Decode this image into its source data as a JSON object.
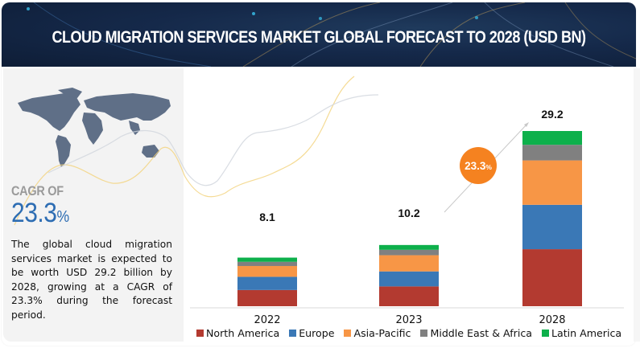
{
  "header": {
    "title": "CLOUD MIGRATION SERVICES MARKET GLOBAL FORECAST TO 2028 (USD BN)"
  },
  "side_panel": {
    "map_icon": "world-map-icon",
    "cagr_label": "CAGR OF",
    "cagr_value": "23.3",
    "cagr_unit": "%",
    "description": "The global cloud migration services market is expected to be worth USD 29.2 billion by 2028, growing at a CAGR of 23.3% during the forecast period."
  },
  "cagr_bubble": {
    "value": "23.3",
    "unit": "%",
    "color": "#f58220"
  },
  "chart_data": {
    "type": "bar",
    "stacked": true,
    "title": "Cloud Migration Services Market Global Forecast to 2028 (USD BN)",
    "xlabel": "",
    "ylabel": "USD BN",
    "categories": [
      "2022",
      "2023",
      "2028"
    ],
    "totals": [
      8.1,
      10.2,
      29.2
    ],
    "total_labels": [
      "8.1",
      "10.2",
      "29.2"
    ],
    "series": [
      {
        "name": "North America",
        "color": "#b33a30",
        "values": [
          2.7,
          3.3,
          9.5
        ]
      },
      {
        "name": "Europe",
        "color": "#3a78b6",
        "values": [
          2.2,
          2.5,
          7.4
        ]
      },
      {
        "name": "Asia-Pacific",
        "color": "#f79646",
        "values": [
          1.8,
          2.7,
          7.4
        ]
      },
      {
        "name": "Middle East & Africa",
        "color": "#808080",
        "values": [
          0.7,
          0.9,
          2.6
        ]
      },
      {
        "name": "Latin America",
        "color": "#0db04b",
        "values": [
          0.7,
          0.8,
          2.3
        ]
      }
    ],
    "ylim": [
      0,
      29.2
    ],
    "grid": false,
    "legend_position": "bottom",
    "annotation": "23.3% CAGR arrow from 2023 to 2028"
  }
}
